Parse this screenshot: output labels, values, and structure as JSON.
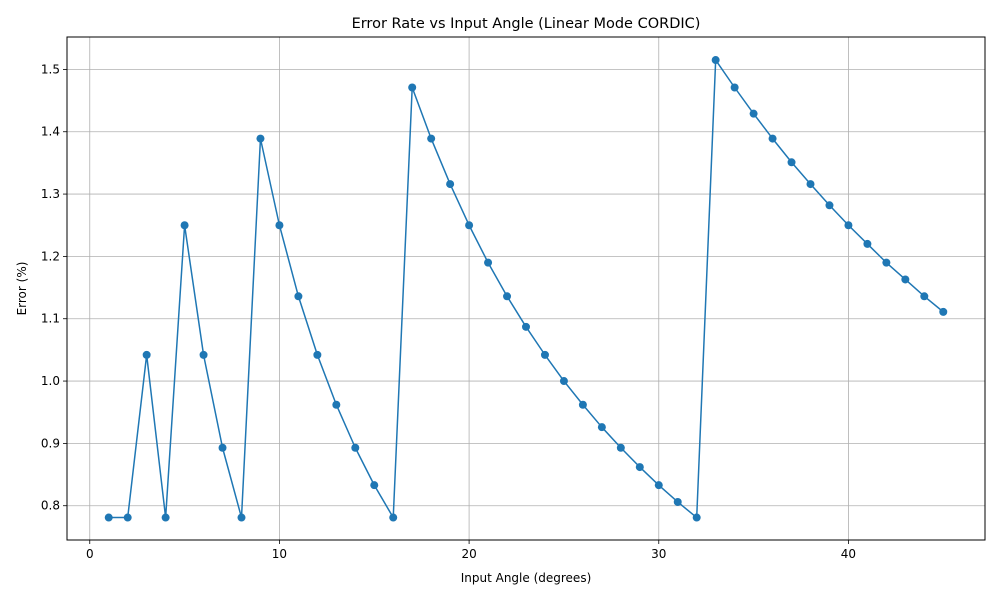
{
  "chart_data": {
    "type": "line",
    "title": "Error Rate vs Input Angle (Linear Mode CORDIC)",
    "xlabel": "Input Angle (degrees)",
    "ylabel": "Error (%)",
    "xlim": [
      -1.2,
      47.2
    ],
    "ylim": [
      0.745,
      1.552
    ],
    "xticks": [
      0,
      10,
      20,
      30,
      40
    ],
    "xtick_labels": [
      "0",
      "10",
      "20",
      "30",
      "40"
    ],
    "yticks": [
      0.8,
      0.9,
      1.0,
      1.1,
      1.2,
      1.3,
      1.4,
      1.5
    ],
    "ytick_labels": [
      "0.8",
      "0.9",
      "1.0",
      "1.1",
      "1.2",
      "1.3",
      "1.4",
      "1.5"
    ],
    "grid": true,
    "marker": "circle",
    "color": "#1f77b4",
    "series": [
      {
        "x": [
          1,
          2,
          3,
          4,
          5,
          6,
          7,
          8,
          9,
          10,
          11,
          12,
          13,
          14,
          15,
          16,
          17,
          18,
          19,
          20,
          21,
          22,
          23,
          24,
          25,
          26,
          27,
          28,
          29,
          30,
          31,
          32,
          33,
          34,
          35,
          36,
          37,
          38,
          39,
          40,
          41,
          42,
          43,
          44,
          45
        ],
        "y": [
          0.781,
          0.781,
          1.042,
          0.781,
          1.25,
          1.042,
          0.893,
          0.781,
          1.389,
          1.25,
          1.136,
          1.042,
          0.962,
          0.893,
          0.833,
          0.781,
          1.471,
          1.389,
          1.316,
          1.25,
          1.19,
          1.136,
          1.087,
          1.042,
          1.0,
          0.962,
          0.926,
          0.893,
          0.862,
          0.833,
          0.806,
          0.781,
          1.515,
          1.471,
          1.429,
          1.389,
          1.351,
          1.316,
          1.282,
          1.25,
          1.22,
          1.19,
          1.163,
          1.136,
          1.111
        ]
      }
    ]
  }
}
